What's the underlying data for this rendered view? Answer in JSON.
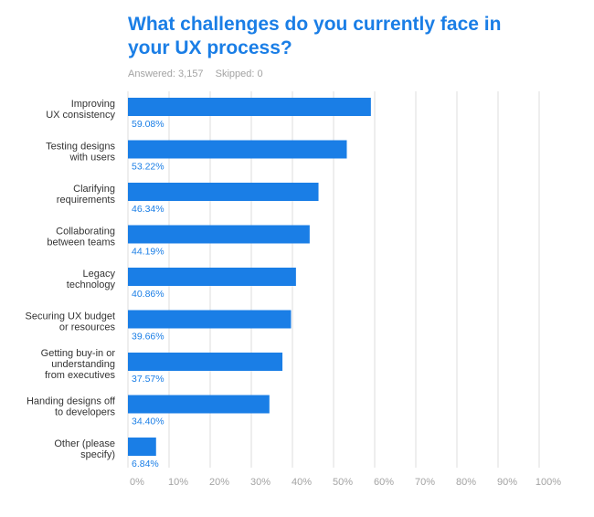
{
  "title": "What challenges do you currently face in your UX process?",
  "answered": "Answered: 3,157",
  "skipped": "Skipped: 0",
  "colors": {
    "bar": "#1a7ee6",
    "title": "#1a7ee6",
    "label": "#333333",
    "grid": "#dcdcdc",
    "tick": "#a3a3a3"
  },
  "chart_data": {
    "type": "bar",
    "orientation": "horizontal",
    "categories": [
      [
        "Improving",
        "UX consistency"
      ],
      [
        "Testing designs",
        "with users"
      ],
      [
        "Clarifying",
        "requirements"
      ],
      [
        "Collaborating",
        "between teams"
      ],
      [
        "Legacy",
        "technology"
      ],
      [
        "Securing UX budget",
        "or resources"
      ],
      [
        "Getting buy-in or",
        "understanding",
        "from executives"
      ],
      [
        "Handing designs off",
        "to developers"
      ],
      [
        "Other (please",
        "specify)"
      ]
    ],
    "values": [
      59.08,
      53.22,
      46.34,
      44.19,
      40.86,
      39.66,
      37.57,
      34.4,
      6.84
    ],
    "value_labels": [
      "59.08%",
      "53.22%",
      "46.34%",
      "44.19%",
      "40.86%",
      "39.66%",
      "37.57%",
      "34.40%",
      "6.84%"
    ],
    "xlim": [
      0,
      100
    ],
    "xticks": [
      "0%",
      "10%",
      "20%",
      "30%",
      "40%",
      "50%",
      "60%",
      "70%",
      "80%",
      "90%",
      "100%"
    ],
    "grid": true
  }
}
